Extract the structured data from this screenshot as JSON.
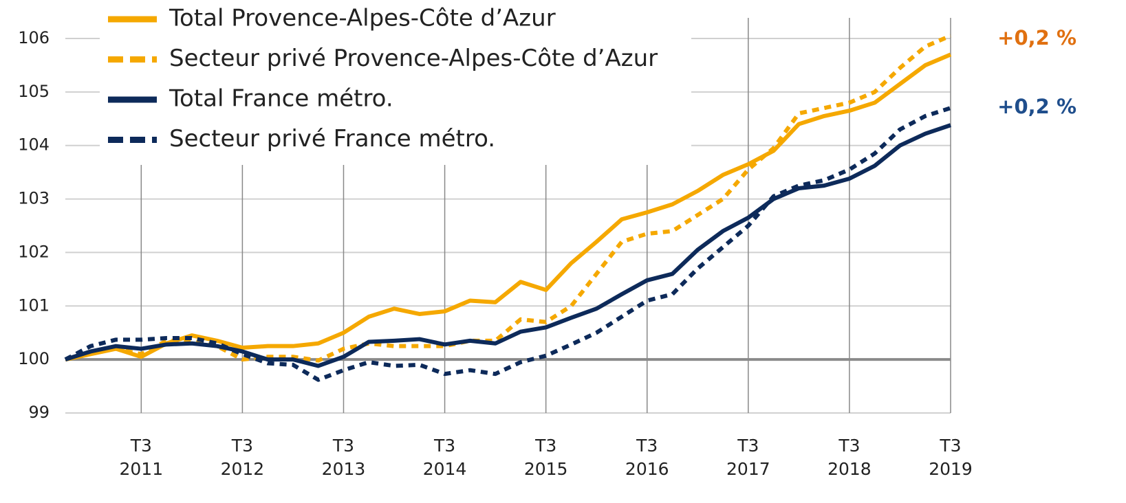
{
  "chart_data": {
    "type": "line",
    "categories": [
      null,
      null,
      null,
      "T3 2011",
      null,
      null,
      null,
      "T3 2012",
      null,
      null,
      null,
      "T3 2013",
      null,
      null,
      null,
      "T3 2014",
      null,
      null,
      null,
      "T3 2015",
      null,
      null,
      null,
      "T3 2016",
      null,
      null,
      null,
      "T3 2017",
      null,
      null,
      null,
      "T3 2018",
      null,
      null,
      null,
      "T3 2019"
    ],
    "series": [
      {
        "name": "Total Provence-Alpes-Côte d’Azur",
        "color": "#f5a800",
        "style": "solid",
        "values": [
          100,
          100.1,
          100.2,
          100.05,
          100.3,
          100.45,
          100.35,
          100.22,
          100.25,
          100.25,
          100.3,
          100.5,
          100.8,
          100.95,
          100.85,
          100.9,
          101.1,
          101.07,
          101.45,
          101.3,
          101.8,
          102.2,
          102.62,
          102.75,
          102.9,
          103.15,
          103.45,
          103.65,
          103.9,
          104.4,
          104.55,
          104.65,
          104.8,
          105.15,
          105.5,
          105.7
        ]
      },
      {
        "name": "Secteur privé Provence-Alpes-Côte d’Azur",
        "color": "#f5a800",
        "style": "dashed",
        "values": [
          100,
          100.15,
          100.2,
          100.1,
          100.35,
          100.35,
          100.25,
          100.0,
          100.05,
          100.05,
          99.98,
          100.2,
          100.3,
          100.25,
          100.25,
          100.25,
          100.35,
          100.35,
          100.75,
          100.7,
          101.0,
          101.6,
          102.2,
          102.35,
          102.4,
          102.7,
          103.0,
          103.55,
          103.95,
          104.6,
          104.7,
          104.8,
          105.0,
          105.45,
          105.85,
          106.05
        ]
      },
      {
        "name": "Total France métro.",
        "color": "#0d2a5a",
        "style": "solid",
        "values": [
          100,
          100.15,
          100.25,
          100.2,
          100.28,
          100.3,
          100.25,
          100.15,
          100.0,
          100.0,
          99.88,
          100.05,
          100.33,
          100.35,
          100.38,
          100.28,
          100.35,
          100.3,
          100.52,
          100.6,
          100.78,
          100.95,
          101.22,
          101.48,
          101.6,
          102.05,
          102.4,
          102.65,
          103.0,
          103.2,
          103.25,
          103.38,
          103.62,
          104.0,
          104.22,
          104.38
        ]
      },
      {
        "name": "Secteur privé France métro.",
        "color": "#0d2a5a",
        "style": "dashed",
        "values": [
          100,
          100.25,
          100.37,
          100.37,
          100.4,
          100.4,
          100.3,
          100.1,
          99.93,
          99.9,
          99.62,
          99.8,
          99.95,
          99.88,
          99.9,
          99.73,
          99.8,
          99.73,
          99.95,
          100.07,
          100.28,
          100.5,
          100.8,
          101.1,
          101.22,
          101.7,
          102.1,
          102.5,
          103.05,
          103.25,
          103.35,
          103.55,
          103.85,
          104.3,
          104.55,
          104.7
        ]
      }
    ],
    "ylim": [
      99,
      106
    ],
    "yticks": [
      99,
      100,
      101,
      102,
      103,
      104,
      105,
      106
    ],
    "reference_line": 100,
    "grid": true,
    "annotations": [
      {
        "text": "+0,2 %",
        "color": "#e07010"
      },
      {
        "text": "+0,2 %",
        "color": "#1f4e8c"
      }
    ]
  }
}
